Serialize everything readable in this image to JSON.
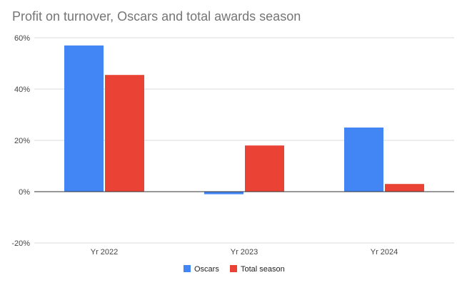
{
  "chart_data": {
    "type": "bar",
    "title": "Profit on turnover, Oscars and total awards season",
    "categories": [
      "Yr 2022",
      "Yr 2023",
      "Yr 2024"
    ],
    "series": [
      {
        "name": "Oscars",
        "values": [
          57,
          -1,
          25
        ],
        "color": "#4285f4"
      },
      {
        "name": "Total season",
        "values": [
          45.5,
          18,
          3
        ],
        "color": "#ea4335"
      }
    ],
    "ylim": [
      -20,
      60
    ],
    "yticks": [
      60,
      40,
      20,
      0,
      -20
    ],
    "ytick_labels": [
      "60%",
      "40%",
      "20%",
      "0%",
      "-20%"
    ],
    "xlabel": "",
    "ylabel": "",
    "grid": true,
    "legend": "bottom"
  }
}
